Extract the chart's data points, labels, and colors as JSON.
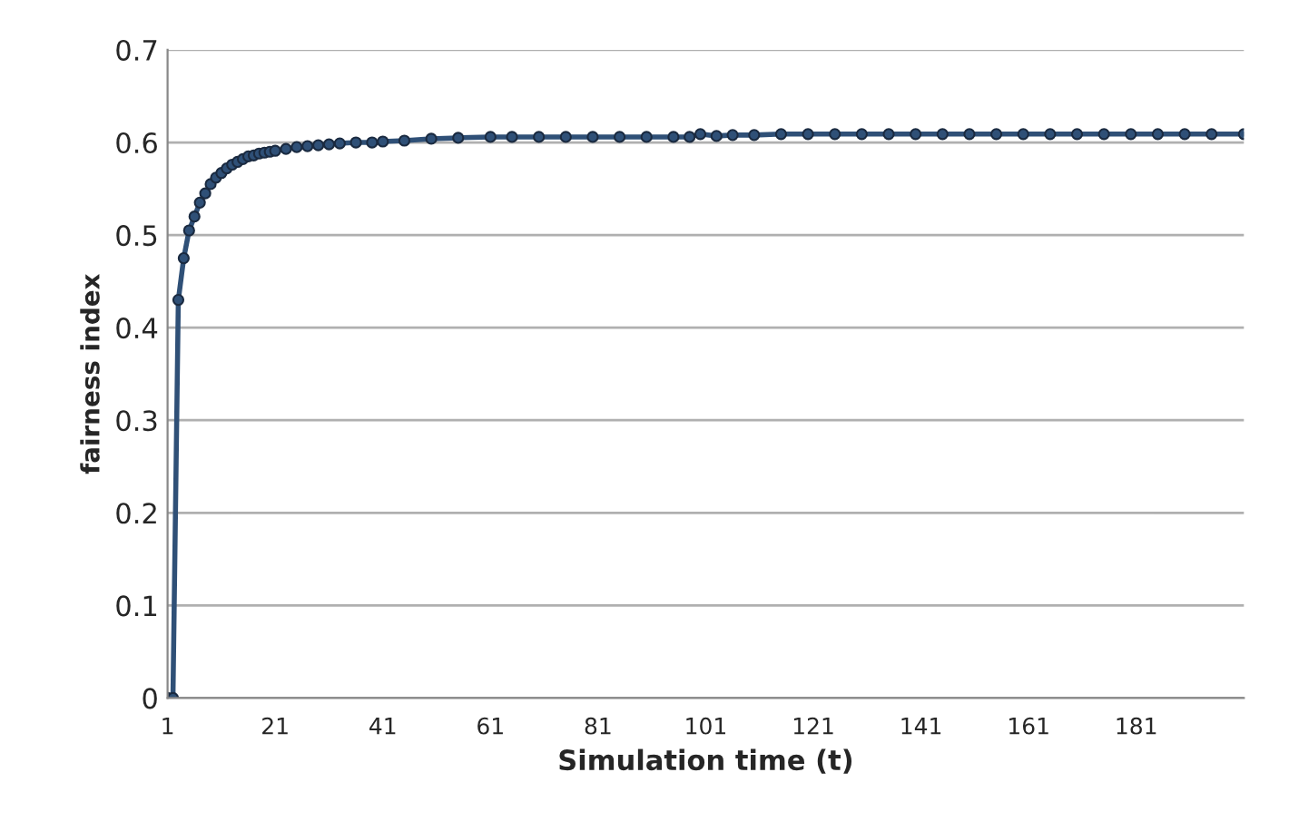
{
  "chart_data": {
    "type": "line",
    "xlabel": "Simulation time (t)",
    "ylabel": "fairness index",
    "series": [
      {
        "color": "#2f5077",
        "x": [
          1,
          2,
          3,
          4,
          5,
          6,
          7,
          8,
          9,
          10,
          11,
          12,
          13,
          14,
          15,
          16,
          17,
          18,
          19,
          20,
          21,
          23,
          25,
          27,
          29,
          31,
          33,
          36,
          39,
          41,
          45,
          50,
          55,
          61,
          65,
          70,
          75,
          80,
          85,
          90,
          95,
          98,
          100,
          103,
          106,
          110,
          115,
          120,
          125,
          130,
          135,
          140,
          145,
          150,
          155,
          160,
          165,
          170,
          175,
          180,
          185,
          190,
          195,
          201
        ],
        "values": [
          0,
          0,
          0.43,
          0.475,
          0.505,
          0.52,
          0.535,
          0.545,
          0.555,
          0.562,
          0.567,
          0.572,
          0.576,
          0.579,
          0.582,
          0.585,
          0.586,
          0.588,
          0.589,
          0.59,
          0.591,
          0.593,
          0.595,
          0.596,
          0.597,
          0.598,
          0.599,
          0.6,
          0.6,
          0.601,
          0.602,
          0.604,
          0.605,
          0.606,
          0.606,
          0.606,
          0.606,
          0.606,
          0.606,
          0.606,
          0.606,
          0.606,
          0.609,
          0.607,
          0.608,
          0.608,
          0.609,
          0.609,
          0.609,
          0.609,
          0.609,
          0.609,
          0.609,
          0.609,
          0.609,
          0.609,
          0.609,
          0.609,
          0.609,
          0.609,
          0.609,
          0.609,
          0.609,
          0.609
        ]
      }
    ],
    "xlim": [
      1,
      201
    ],
    "xticks": [
      1,
      21,
      41,
      61,
      81,
      101,
      121,
      141,
      161,
      181
    ],
    "ylim": [
      0,
      0.7
    ],
    "yticks": [
      0,
      0.1,
      0.2,
      0.3,
      0.4,
      0.5,
      0.6,
      0.7
    ],
    "grid": "y",
    "marker": "circle",
    "line_style": "solid"
  }
}
